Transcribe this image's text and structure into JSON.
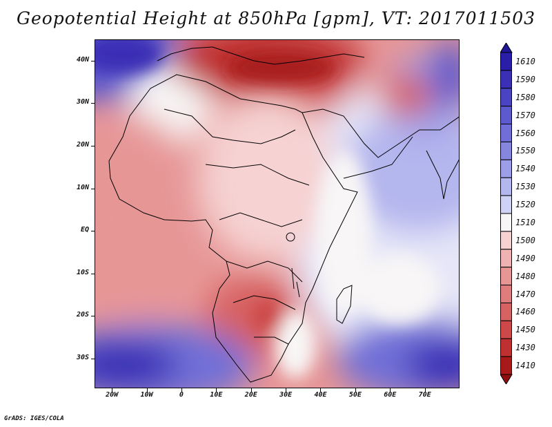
{
  "title": "Geopotential Height at 850hPa [gpm], VT: 2017011503",
  "credit": "GrADS: IGES/COLA",
  "map": {
    "lon_range": [
      -25,
      80
    ],
    "lat_range": [
      -37,
      45
    ],
    "lat_ticks": [
      {
        "value": 40,
        "label": "40N"
      },
      {
        "value": 30,
        "label": "30N"
      },
      {
        "value": 20,
        "label": "20N"
      },
      {
        "value": 10,
        "label": "10N"
      },
      {
        "value": 0,
        "label": "EQ"
      },
      {
        "value": -10,
        "label": "10S"
      },
      {
        "value": -20,
        "label": "20S"
      },
      {
        "value": -30,
        "label": "30S"
      }
    ],
    "lon_ticks": [
      {
        "value": -20,
        "label": "20W"
      },
      {
        "value": -10,
        "label": "10W"
      },
      {
        "value": 0,
        "label": "0"
      },
      {
        "value": 10,
        "label": "10E"
      },
      {
        "value": 20,
        "label": "20E"
      },
      {
        "value": 30,
        "label": "30E"
      },
      {
        "value": 40,
        "label": "40E"
      },
      {
        "value": 50,
        "label": "50E"
      },
      {
        "value": 60,
        "label": "60E"
      },
      {
        "value": 70,
        "label": "70E"
      }
    ]
  },
  "legend": {
    "levels": [
      {
        "label": "1610",
        "color": "#2a1ea8"
      },
      {
        "label": "1590",
        "color": "#3a2fb5"
      },
      {
        "label": "1580",
        "color": "#4a44c2"
      },
      {
        "label": "1570",
        "color": "#5d5acd"
      },
      {
        "label": "1560",
        "color": "#716fd7"
      },
      {
        "label": "1550",
        "color": "#8786df"
      },
      {
        "label": "1540",
        "color": "#9d9ee7"
      },
      {
        "label": "1530",
        "color": "#b4b6ee"
      },
      {
        "label": "1520",
        "color": "#cfd1f5"
      },
      {
        "label": "1510",
        "color": "#f8f6f6"
      },
      {
        "label": "1500",
        "color": "#f6d2d2"
      },
      {
        "label": "1490",
        "color": "#efb2b2"
      },
      {
        "label": "1480",
        "color": "#e79696"
      },
      {
        "label": "1470",
        "color": "#df7c7c"
      },
      {
        "label": "1460",
        "color": "#d76262"
      },
      {
        "label": "1450",
        "color": "#cd4848"
      },
      {
        "label": "1430",
        "color": "#bf3030"
      },
      {
        "label": "1410",
        "color": "#a81a1a"
      }
    ],
    "top_arrow_color": "#1e1696",
    "bottom_arrow_color": "#8f1010"
  }
}
